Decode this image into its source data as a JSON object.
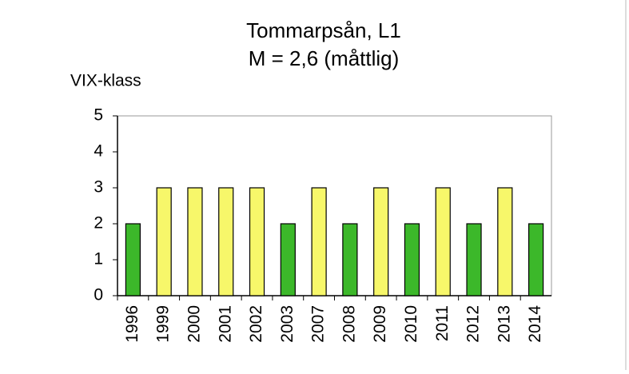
{
  "chart_data": {
    "type": "bar",
    "title": "Tommarpsån, L1",
    "subtitle": "M = 2,6 (måttlig)",
    "y_label": "VIX-klass",
    "categories": [
      "1996",
      "1999",
      "2000",
      "2001",
      "2002",
      "2003",
      "2007",
      "2008",
      "2009",
      "2010",
      "2011",
      "2012",
      "2013",
      "2014"
    ],
    "values": [
      2,
      3,
      3,
      3,
      3,
      2,
      3,
      2,
      3,
      2,
      3,
      2,
      3,
      2
    ],
    "colors": [
      "#3cb82a",
      "#f7f76a",
      "#f7f76a",
      "#f7f76a",
      "#f7f76a",
      "#3cb82a",
      "#f7f76a",
      "#3cb82a",
      "#f7f76a",
      "#3cb82a",
      "#f7f76a",
      "#3cb82a",
      "#f7f76a",
      "#3cb82a"
    ],
    "ylim": [
      0,
      5
    ],
    "yticks": [
      0,
      1,
      2,
      3,
      4,
      5
    ],
    "grid": false
  }
}
